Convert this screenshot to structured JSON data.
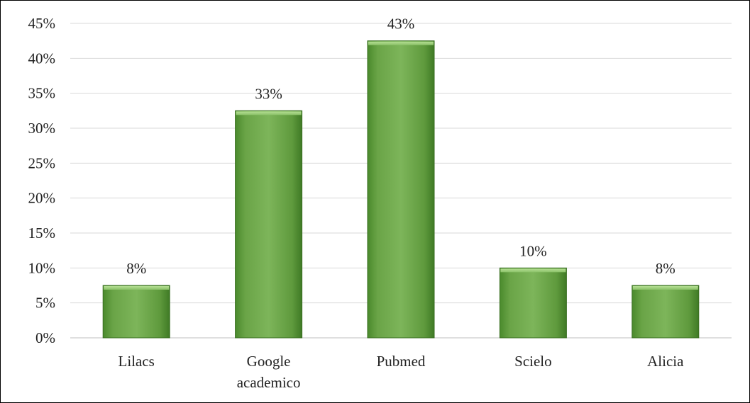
{
  "chart_data": {
    "type": "bar",
    "title": "",
    "xlabel": "",
    "ylabel": "",
    "categories": [
      [
        "Lilacs"
      ],
      [
        "Google",
        "academico"
      ],
      [
        "Pubmed"
      ],
      [
        "Scielo"
      ],
      [
        "Alicia"
      ]
    ],
    "values": [
      7.5,
      32.5,
      42.5,
      10,
      7.5
    ],
    "data_labels": [
      "8%",
      "33%",
      "43%",
      "10%",
      "8%"
    ],
    "ylim": [
      0,
      45
    ],
    "yticks": [
      "0%",
      "5%",
      "10%",
      "15%",
      "20%",
      "25%",
      "30%",
      "35%",
      "40%",
      "45%"
    ],
    "grid": "horizontal",
    "legend": "none",
    "colors": {
      "bar_light": "#8cc26a",
      "bar_mid": "#6aa447",
      "bar_dark": "#3f7a25",
      "bar_top": "#a8d884",
      "grid": "#d9d9d9",
      "axis": "#bfbfbf"
    }
  }
}
